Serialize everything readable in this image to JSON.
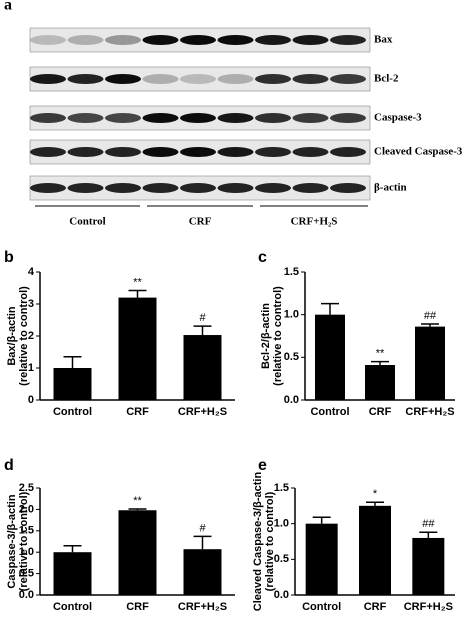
{
  "blot": {
    "panel_label": "a",
    "rows": [
      "Bax",
      "Bcl-2",
      "Caspase-3",
      "Cleaved Caspase-3",
      "β-actin"
    ],
    "groups": [
      "Control",
      "CRF",
      "CRF+H₂S"
    ]
  },
  "chart_data": [
    {
      "type": "bar",
      "panel_label": "b",
      "ylabel": [
        "Bax/β-actin",
        "(relative to control)"
      ],
      "categories": [
        "Control",
        "CRF",
        "CRF+H₂S"
      ],
      "values": [
        1.0,
        3.2,
        2.03
      ],
      "errors": [
        0.35,
        0.22,
        0.28
      ],
      "annotations": [
        null,
        "**",
        "#"
      ],
      "color": "#000000",
      "ylim": [
        0,
        4
      ],
      "yticks": [
        0,
        1,
        2,
        3,
        4
      ]
    },
    {
      "type": "bar",
      "panel_label": "c",
      "ylabel": [
        "Bcl-2/β-actin",
        "(relative to control)"
      ],
      "categories": [
        "Control",
        "CRF",
        "CRF+H₂S"
      ],
      "values": [
        1.0,
        0.41,
        0.86
      ],
      "errors": [
        0.13,
        0.04,
        0.03
      ],
      "annotations": [
        null,
        "**",
        "##"
      ],
      "color": "#000000",
      "ylim": [
        0,
        1.5
      ],
      "yticks": [
        {
          "value": 0,
          "label": "0.0"
        },
        0.5,
        {
          "value": 1,
          "label": "1.0"
        },
        1.5
      ]
    },
    {
      "type": "bar",
      "panel_label": "d",
      "ylabel": [
        "Caspase-3/β-actin",
        "(relative to control)"
      ],
      "categories": [
        "Control",
        "CRF",
        "CRF+H₂S"
      ],
      "values": [
        1.0,
        1.98,
        1.07
      ],
      "errors": [
        0.15,
        0.03,
        0.3
      ],
      "annotations": [
        null,
        "**",
        "#"
      ],
      "color": "#000000",
      "ylim": [
        0,
        2.5
      ],
      "yticks": [
        {
          "value": 0,
          "label": "0.0"
        },
        0.5,
        {
          "value": 1,
          "label": "1.0"
        },
        1.5,
        {
          "value": 2,
          "label": "2.0"
        },
        2.5
      ]
    },
    {
      "type": "bar",
      "panel_label": "e",
      "ylabel": [
        "Cleaved Caspase-3/β-actin",
        "(relative to control)"
      ],
      "categories": [
        "Control",
        "CRF",
        "CRF+H₂S"
      ],
      "values": [
        1.0,
        1.25,
        0.8
      ],
      "errors": [
        0.09,
        0.05,
        0.08
      ],
      "annotations": [
        null,
        "*",
        "##"
      ],
      "color": "#000000",
      "ylim": [
        0,
        1.5
      ],
      "yticks": [
        {
          "value": 0,
          "label": "0.0"
        },
        0.5,
        {
          "value": 1,
          "label": "1.0"
        },
        1.5
      ]
    }
  ]
}
